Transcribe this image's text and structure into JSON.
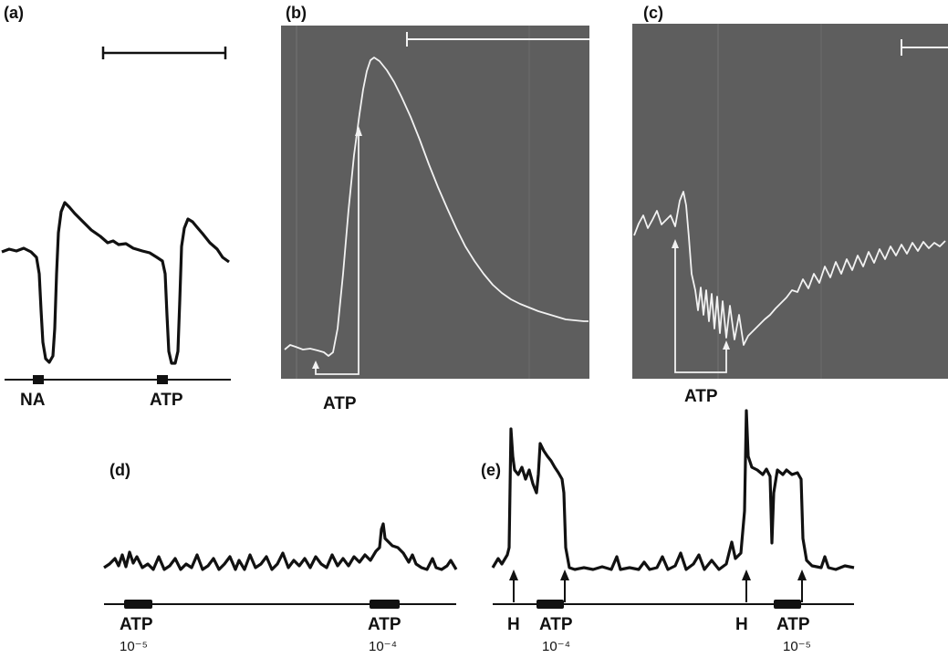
{
  "figure": {
    "panels": {
      "a": {
        "label": "(a)",
        "markers": [
          "NA",
          "ATP"
        ]
      },
      "b": {
        "label": "(b)",
        "marker": "ATP"
      },
      "c": {
        "label": "(c)",
        "marker": "ATP"
      },
      "d": {
        "label": "(d)",
        "markers": [
          {
            "drug": "ATP",
            "conc": "10⁻⁵"
          },
          {
            "drug": "ATP",
            "conc": "10⁻⁴"
          }
        ]
      },
      "e": {
        "label": "(e)",
        "markers": [
          {
            "drug": "H"
          },
          {
            "drug": "ATP",
            "conc": "10⁻⁴"
          },
          {
            "drug": "H"
          },
          {
            "drug": "ATP",
            "conc": "10⁻⁵"
          }
        ]
      }
    },
    "colors": {
      "ink": "#111111",
      "oscilloscope_bg": "#5e5e5e",
      "oscilloscope_trace": "#f2f2f2"
    }
  }
}
